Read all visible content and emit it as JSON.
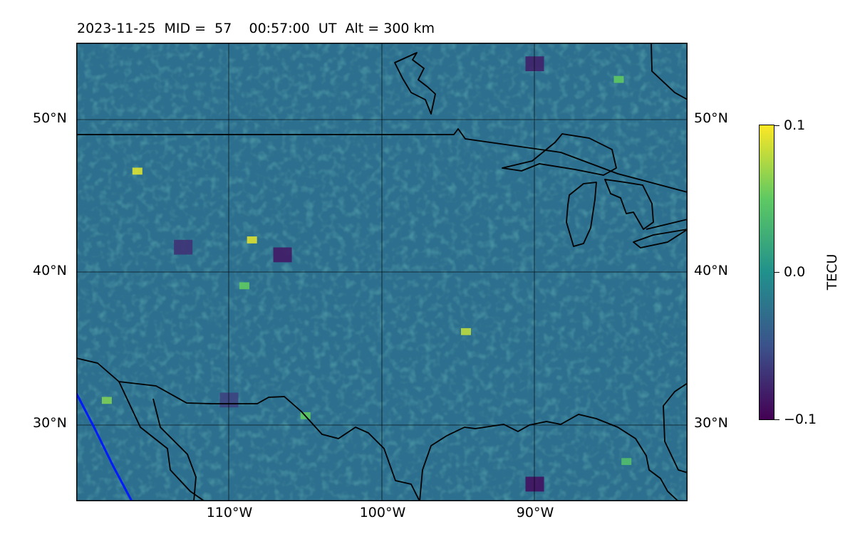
{
  "title": "2023-11-25  MID =  57    00:57:00  UT  Alt = 300 km",
  "lat_labels": [
    "50°N",
    "40°N",
    "30°N"
  ],
  "lon_labels": [
    "110°W",
    "100°W",
    "90°W"
  ],
  "colorbar": {
    "label": "TECU",
    "ticks": [
      "0.1",
      "0.0",
      "−0.1"
    ],
    "min": -0.1,
    "max": 0.1,
    "colormap": [
      "#440154",
      "#3b528b",
      "#21918c",
      "#5ec962",
      "#fde725"
    ]
  },
  "chart_data": {
    "type": "heatmap",
    "projection": "equirectangular",
    "lon_range": [
      -120,
      -80
    ],
    "lat_range": [
      25,
      55
    ],
    "gridlines_lon": [
      -110,
      -100,
      -90
    ],
    "gridlines_lat": [
      30,
      40,
      50
    ],
    "quantity": "TEC",
    "units": "TECU",
    "value_range": [
      -0.1,
      0.1
    ],
    "background_value": -0.015,
    "features": [
      {
        "note": "low",
        "lon": -106.5,
        "lat": 41.0,
        "value": -0.085
      },
      {
        "note": "low",
        "lon": -113.0,
        "lat": 41.5,
        "value": -0.07
      },
      {
        "note": "low",
        "lon": -90.0,
        "lat": 53.5,
        "value": -0.08
      },
      {
        "note": "low",
        "lon": -90.0,
        "lat": 26.0,
        "value": -0.09
      },
      {
        "note": "low",
        "lon": -110.0,
        "lat": 31.5,
        "value": -0.06
      },
      {
        "note": "high",
        "lon": -108.5,
        "lat": 42.0,
        "value": 0.09
      },
      {
        "note": "high",
        "lon": -116.0,
        "lat": 46.5,
        "value": 0.09
      },
      {
        "note": "high",
        "lon": -94.5,
        "lat": 36.0,
        "value": 0.08
      },
      {
        "note": "high",
        "lon": -84.5,
        "lat": 52.5,
        "value": 0.05
      },
      {
        "note": "high",
        "lon": -118.0,
        "lat": 31.5,
        "value": 0.06
      },
      {
        "note": "high",
        "lon": -105.0,
        "lat": 30.5,
        "value": 0.05
      },
      {
        "note": "high",
        "lon": -84.0,
        "lat": 27.5,
        "value": 0.04
      },
      {
        "note": "high",
        "lon": -109.0,
        "lat": 39.0,
        "value": 0.05
      }
    ],
    "overlays": [
      "coastlines",
      "country borders",
      "Great Lakes",
      "blue boundary line (southwest)"
    ]
  }
}
